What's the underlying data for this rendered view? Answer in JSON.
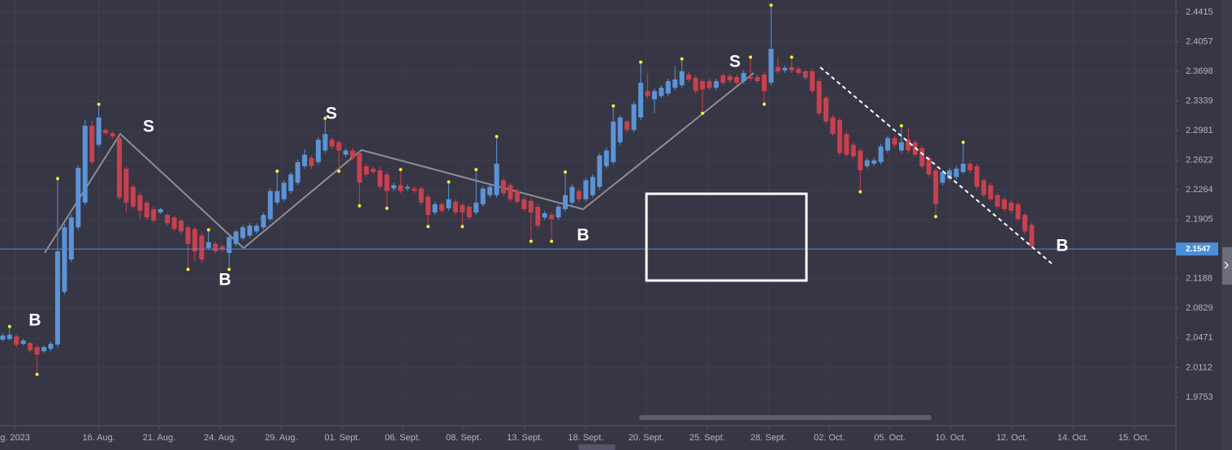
{
  "chart_data": {
    "type": "candlestick",
    "up_color": "#5a94d8",
    "down_color": "#c9404e",
    "xlim": [
      -0.4,
      170.9
    ],
    "ylim": [
      1.9409,
      2.4562
    ],
    "grid": true,
    "yticks": [
      2.4415,
      2.4057,
      2.3698,
      2.3339,
      2.2981,
      2.2622,
      2.2264,
      2.1905,
      2.1188,
      2.0829,
      2.0471,
      2.0112,
      1.9753
    ],
    "xticks": [
      {
        "value": 1.8,
        "label": "g. 2023"
      },
      {
        "value": 14.0,
        "label": "16. Aug."
      },
      {
        "value": 22.8,
        "label": "21. Aug."
      },
      {
        "value": 31.7,
        "label": "24. Aug."
      },
      {
        "value": 40.6,
        "label": "29. Aug."
      },
      {
        "value": 49.5,
        "label": "01. Sept."
      },
      {
        "value": 58.3,
        "label": "06. Sept."
      },
      {
        "value": 67.2,
        "label": "08. Sept."
      },
      {
        "value": 76.1,
        "label": "13. Sept."
      },
      {
        "value": 85.0,
        "label": "18. Sept."
      },
      {
        "value": 93.8,
        "label": "20. Sept."
      },
      {
        "value": 102.7,
        "label": "25. Sept."
      },
      {
        "value": 111.6,
        "label": "28. Sept."
      },
      {
        "value": 120.5,
        "label": "02. Oct."
      },
      {
        "value": 129.3,
        "label": "05. Oct."
      },
      {
        "value": 138.2,
        "label": "10. Oct."
      },
      {
        "value": 147.1,
        "label": "12. Oct."
      },
      {
        "value": 156.0,
        "label": "14. Oct."
      },
      {
        "value": 164.9,
        "label": "15. Oct."
      }
    ],
    "price_line": 2.1547,
    "price_line_color": "#4a8fd6",
    "fractal_color": "#f2ee3c",
    "up_fractals": [
      1,
      8,
      14,
      30,
      40,
      47,
      58,
      65,
      69,
      72,
      82,
      89,
      93,
      99,
      109,
      112,
      115,
      131,
      140
    ],
    "down_fractals": [
      5,
      27,
      33,
      49,
      52,
      56,
      62,
      67,
      77,
      80,
      102,
      111,
      125,
      136
    ],
    "annotations": [
      "B",
      "S",
      "B",
      "S",
      "B",
      "S",
      "B"
    ],
    "open": [
      2.045,
      2.046,
      2.049,
      2.04,
      2.041,
      2.036,
      2.031,
      2.034,
      2.039,
      2.103,
      2.142,
      2.181,
      2.211,
      2.304,
      2.281,
      2.299,
      2.295,
      2.289,
      2.252,
      2.23,
      2.22,
      2.211,
      2.203,
      2.199,
      2.196,
      2.193,
      2.189,
      2.181,
      2.179,
      2.171,
      2.156,
      2.161,
      2.158,
      2.15,
      2.161,
      2.168,
      2.171,
      2.176,
      2.181,
      2.191,
      2.211,
      2.215,
      2.225,
      2.235,
      2.255,
      2.265,
      2.26,
      2.274,
      2.287,
      2.284,
      2.269,
      2.274,
      2.271,
      2.255,
      2.252,
      2.25,
      2.245,
      2.228,
      2.232,
      2.228,
      2.228,
      2.228,
      2.218,
      2.199,
      2.209,
      2.204,
      2.212,
      2.208,
      2.206,
      2.199,
      2.209,
      2.22,
      2.22,
      2.238,
      2.232,
      2.225,
      2.215,
      2.213,
      2.206,
      2.193,
      2.196,
      2.193,
      2.203,
      2.211,
      2.225,
      2.215,
      2.22,
      2.23,
      2.255,
      2.26,
      2.284,
      2.309,
      2.299,
      2.314,
      2.346,
      2.336,
      2.34,
      2.343,
      2.35,
      2.353,
      2.366,
      2.362,
      2.358,
      2.358,
      2.35,
      2.365,
      2.364,
      2.363,
      2.358,
      2.363,
      2.363,
      2.366,
      2.356,
      2.375,
      2.371,
      2.375,
      2.373,
      2.37,
      2.37,
      2.358,
      2.338,
      2.314,
      2.311,
      2.294,
      2.281,
      2.274,
      2.255,
      2.258,
      2.26,
      2.274,
      2.289,
      2.274,
      2.287,
      2.284,
      2.277,
      2.265,
      2.25,
      2.235,
      2.24,
      2.242,
      2.248,
      2.258,
      2.255,
      2.238,
      2.232,
      2.22,
      2.215,
      2.211,
      2.209,
      2.196,
      2.184
    ],
    "high": [
      2.053,
      2.059,
      2.051,
      2.046,
      2.043,
      2.039,
      2.038,
      2.043,
      2.238,
      2.185,
      2.196,
      2.256,
      2.311,
      2.31,
      2.328,
      2.301,
      2.297,
      2.291,
      2.255,
      2.233,
      2.224,
      2.213,
      2.206,
      2.205,
      2.198,
      2.195,
      2.191,
      2.184,
      2.182,
      2.174,
      2.176,
      2.164,
      2.16,
      2.172,
      2.178,
      2.184,
      2.186,
      2.186,
      2.199,
      2.228,
      2.247,
      2.238,
      2.248,
      2.263,
      2.276,
      2.268,
      2.29,
      2.311,
      2.29,
      2.287,
      2.277,
      2.277,
      2.274,
      2.258,
      2.255,
      2.255,
      2.248,
      2.235,
      2.249,
      2.233,
      2.231,
      2.231,
      2.221,
      2.212,
      2.212,
      2.234,
      2.215,
      2.211,
      2.209,
      2.249,
      2.231,
      2.233,
      2.289,
      2.241,
      2.235,
      2.228,
      2.218,
      2.216,
      2.209,
      2.201,
      2.199,
      2.209,
      2.246,
      2.233,
      2.228,
      2.241,
      2.245,
      2.271,
      2.277,
      2.326,
      2.317,
      2.312,
      2.333,
      2.379,
      2.368,
      2.349,
      2.353,
      2.361,
      2.376,
      2.383,
      2.369,
      2.365,
      2.361,
      2.361,
      2.361,
      2.368,
      2.367,
      2.366,
      2.371,
      2.385,
      2.366,
      2.369,
      2.448,
      2.387,
      2.377,
      2.385,
      2.376,
      2.373,
      2.373,
      2.361,
      2.341,
      2.317,
      2.314,
      2.297,
      2.284,
      2.277,
      2.265,
      2.265,
      2.282,
      2.292,
      2.292,
      2.302,
      2.301,
      2.287,
      2.28,
      2.268,
      2.253,
      2.251,
      2.253,
      2.255,
      2.282,
      2.261,
      2.258,
      2.241,
      2.235,
      2.223,
      2.218,
      2.214,
      2.212,
      2.199,
      2.187
    ],
    "low": [
      2.043,
      2.044,
      2.036,
      2.038,
      2.029,
      2.005,
      2.029,
      2.031,
      2.036,
      2.1,
      2.139,
      2.178,
      2.208,
      2.257,
      2.278,
      2.293,
      2.289,
      2.214,
      2.199,
      2.203,
      2.191,
      2.19,
      2.186,
      2.197,
      2.183,
      2.176,
      2.173,
      2.132,
      2.14,
      2.138,
      2.153,
      2.149,
      2.151,
      2.132,
      2.158,
      2.165,
      2.168,
      2.173,
      2.178,
      2.188,
      2.208,
      2.212,
      2.222,
      2.232,
      2.252,
      2.252,
      2.257,
      2.271,
      2.276,
      2.251,
      2.266,
      2.262,
      2.209,
      2.242,
      2.245,
      2.227,
      2.206,
      2.225,
      2.222,
      2.225,
      2.222,
      2.208,
      2.184,
      2.196,
      2.198,
      2.201,
      2.196,
      2.184,
      2.19,
      2.196,
      2.206,
      2.217,
      2.217,
      2.219,
      2.212,
      2.209,
      2.2,
      2.166,
      2.18,
      2.19,
      2.166,
      2.19,
      2.2,
      2.208,
      2.212,
      2.212,
      2.217,
      2.227,
      2.252,
      2.257,
      2.281,
      2.296,
      2.296,
      2.311,
      2.337,
      2.319,
      2.337,
      2.34,
      2.347,
      2.35,
      2.357,
      2.343,
      2.321,
      2.347,
      2.347,
      2.353,
      2.356,
      2.353,
      2.355,
      2.358,
      2.355,
      2.332,
      2.353,
      2.367,
      2.368,
      2.368,
      2.365,
      2.359,
      2.343,
      2.316,
      2.306,
      2.291,
      2.268,
      2.266,
      2.264,
      2.226,
      2.252,
      2.255,
      2.257,
      2.271,
      2.278,
      2.271,
      2.271,
      2.266,
      2.252,
      2.242,
      2.196,
      2.232,
      2.237,
      2.239,
      2.245,
      2.247,
      2.227,
      2.217,
      2.212,
      2.203,
      2.2,
      2.198,
      2.188,
      2.173,
      2.155
    ],
    "close": [
      2.05,
      2.051,
      2.039,
      2.044,
      2.032,
      2.027,
      2.036,
      2.04,
      2.152,
      2.181,
      2.193,
      2.253,
      2.304,
      2.26,
      2.314,
      2.295,
      2.291,
      2.217,
      2.211,
      2.206,
      2.201,
      2.193,
      2.189,
      2.203,
      2.186,
      2.179,
      2.176,
      2.161,
      2.152,
      2.142,
      2.163,
      2.152,
      2.154,
      2.169,
      2.176,
      2.181,
      2.183,
      2.183,
      2.196,
      2.225,
      2.225,
      2.235,
      2.245,
      2.26,
      2.269,
      2.255,
      2.287,
      2.294,
      2.279,
      2.274,
      2.274,
      2.265,
      2.235,
      2.245,
      2.248,
      2.23,
      2.225,
      2.232,
      2.225,
      2.23,
      2.225,
      2.211,
      2.196,
      2.209,
      2.201,
      2.215,
      2.199,
      2.199,
      2.193,
      2.211,
      2.228,
      2.23,
      2.258,
      2.222,
      2.215,
      2.212,
      2.203,
      2.199,
      2.183,
      2.198,
      2.191,
      2.206,
      2.22,
      2.23,
      2.215,
      2.238,
      2.242,
      2.268,
      2.274,
      2.309,
      2.314,
      2.299,
      2.33,
      2.356,
      2.34,
      2.346,
      2.35,
      2.358,
      2.36,
      2.37,
      2.36,
      2.346,
      2.348,
      2.35,
      2.358,
      2.356,
      2.359,
      2.356,
      2.368,
      2.361,
      2.358,
      2.346,
      2.397,
      2.37,
      2.374,
      2.371,
      2.368,
      2.362,
      2.346,
      2.319,
      2.309,
      2.294,
      2.271,
      2.269,
      2.267,
      2.25,
      2.262,
      2.262,
      2.279,
      2.289,
      2.281,
      2.284,
      2.274,
      2.269,
      2.255,
      2.245,
      2.209,
      2.248,
      2.25,
      2.252,
      2.258,
      2.25,
      2.23,
      2.22,
      2.215,
      2.206,
      2.203,
      2.201,
      2.191,
      2.176,
      2.158
    ]
  }
}
